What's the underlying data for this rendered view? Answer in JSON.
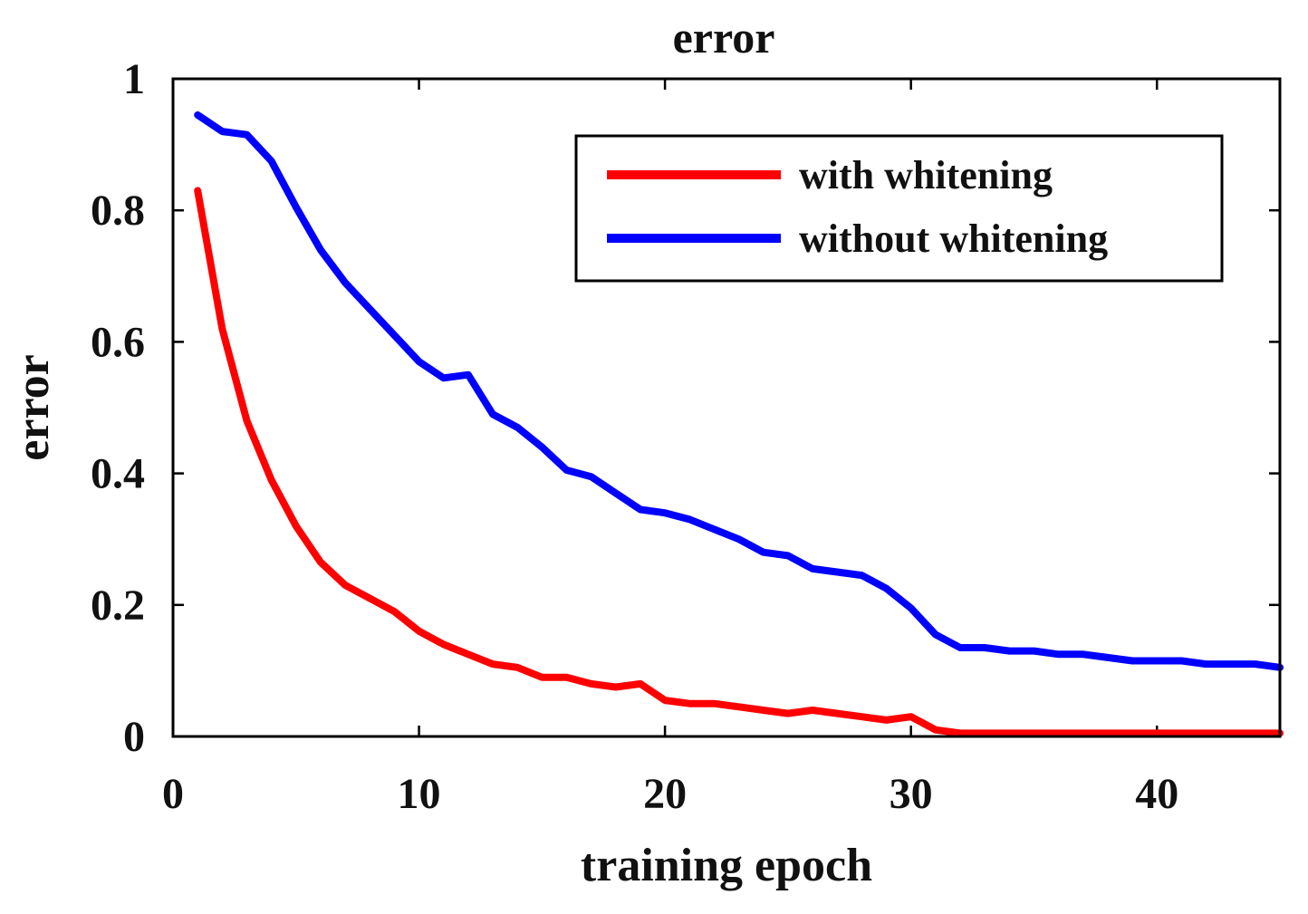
{
  "chart_data": {
    "type": "line",
    "title": "error",
    "xlabel": "training epoch",
    "ylabel": "error",
    "xlim": [
      0,
      45
    ],
    "ylim": [
      0,
      1
    ],
    "xticks": [
      0,
      10,
      20,
      30,
      40
    ],
    "yticks": [
      0,
      0.2,
      0.4,
      0.6,
      0.8,
      1
    ],
    "xtick_labels": [
      "0",
      "10",
      "20",
      "30",
      "40"
    ],
    "ytick_labels": [
      "0",
      "0.2",
      "0.4",
      "0.6",
      "0.8",
      "1"
    ],
    "grid": false,
    "legend": {
      "position": "top-right",
      "boxed": true
    },
    "x": [
      1,
      2,
      3,
      4,
      5,
      6,
      7,
      8,
      9,
      10,
      11,
      12,
      13,
      14,
      15,
      16,
      17,
      18,
      19,
      20,
      21,
      22,
      23,
      24,
      25,
      26,
      27,
      28,
      29,
      30,
      31,
      32,
      33,
      34,
      35,
      36,
      37,
      38,
      39,
      40,
      41,
      42,
      43,
      44,
      45
    ],
    "series": [
      {
        "name": "with whitening",
        "color": "#ff0000",
        "values": [
          0.83,
          0.62,
          0.48,
          0.39,
          0.32,
          0.265,
          0.23,
          0.21,
          0.19,
          0.16,
          0.14,
          0.125,
          0.11,
          0.105,
          0.09,
          0.09,
          0.08,
          0.075,
          0.08,
          0.055,
          0.05,
          0.05,
          0.045,
          0.04,
          0.035,
          0.04,
          0.035,
          0.03,
          0.025,
          0.03,
          0.01,
          0.005,
          0.005,
          0.005,
          0.005,
          0.005,
          0.005,
          0.005,
          0.005,
          0.005,
          0.005,
          0.005,
          0.005,
          0.005,
          0.005
        ]
      },
      {
        "name": "without whitening",
        "color": "#0000ff",
        "values": [
          0.945,
          0.92,
          0.915,
          0.875,
          0.805,
          0.74,
          0.69,
          0.65,
          0.61,
          0.57,
          0.545,
          0.55,
          0.49,
          0.47,
          0.44,
          0.405,
          0.395,
          0.37,
          0.345,
          0.34,
          0.33,
          0.315,
          0.3,
          0.28,
          0.275,
          0.255,
          0.25,
          0.245,
          0.225,
          0.195,
          0.155,
          0.135,
          0.135,
          0.13,
          0.13,
          0.125,
          0.125,
          0.12,
          0.115,
          0.115,
          0.115,
          0.11,
          0.11,
          0.11,
          0.105
        ]
      }
    ]
  }
}
